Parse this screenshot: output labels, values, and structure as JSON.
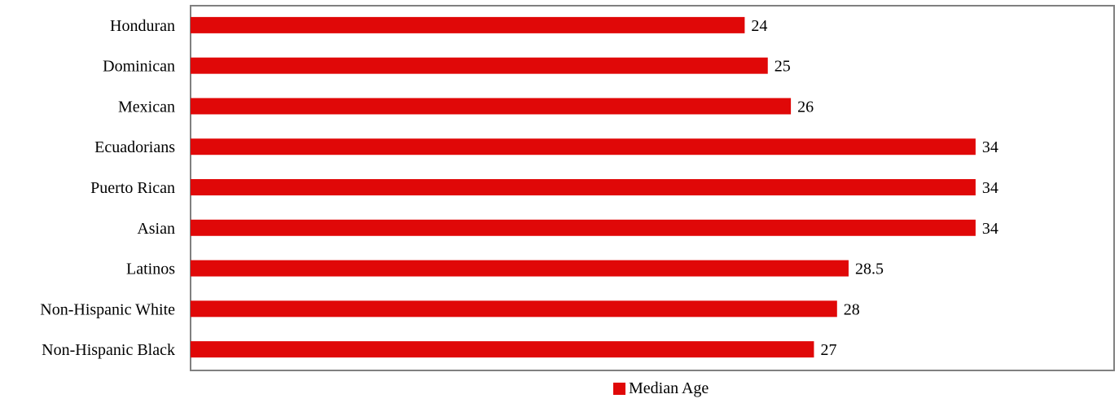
{
  "chart_data": {
    "type": "bar",
    "orientation": "horizontal",
    "categories": [
      "Honduran",
      "Dominican",
      "Mexican",
      "Ecuadorians",
      "Puerto Rican",
      "Asian",
      "Latinos",
      "Non-Hispanic White",
      "Non-Hispanic Black"
    ],
    "series": [
      {
        "name": "Median Age",
        "values": [
          24,
          25,
          26,
          34,
          34,
          34,
          28.5,
          28,
          27
        ],
        "data_labels": [
          "24",
          "25",
          "26",
          "34",
          "34",
          "34",
          "28.5",
          "28",
          "27"
        ],
        "color": "#e00808"
      }
    ],
    "xlim": [
      0,
      40
    ],
    "grid": false,
    "legend_position": "bottom"
  }
}
